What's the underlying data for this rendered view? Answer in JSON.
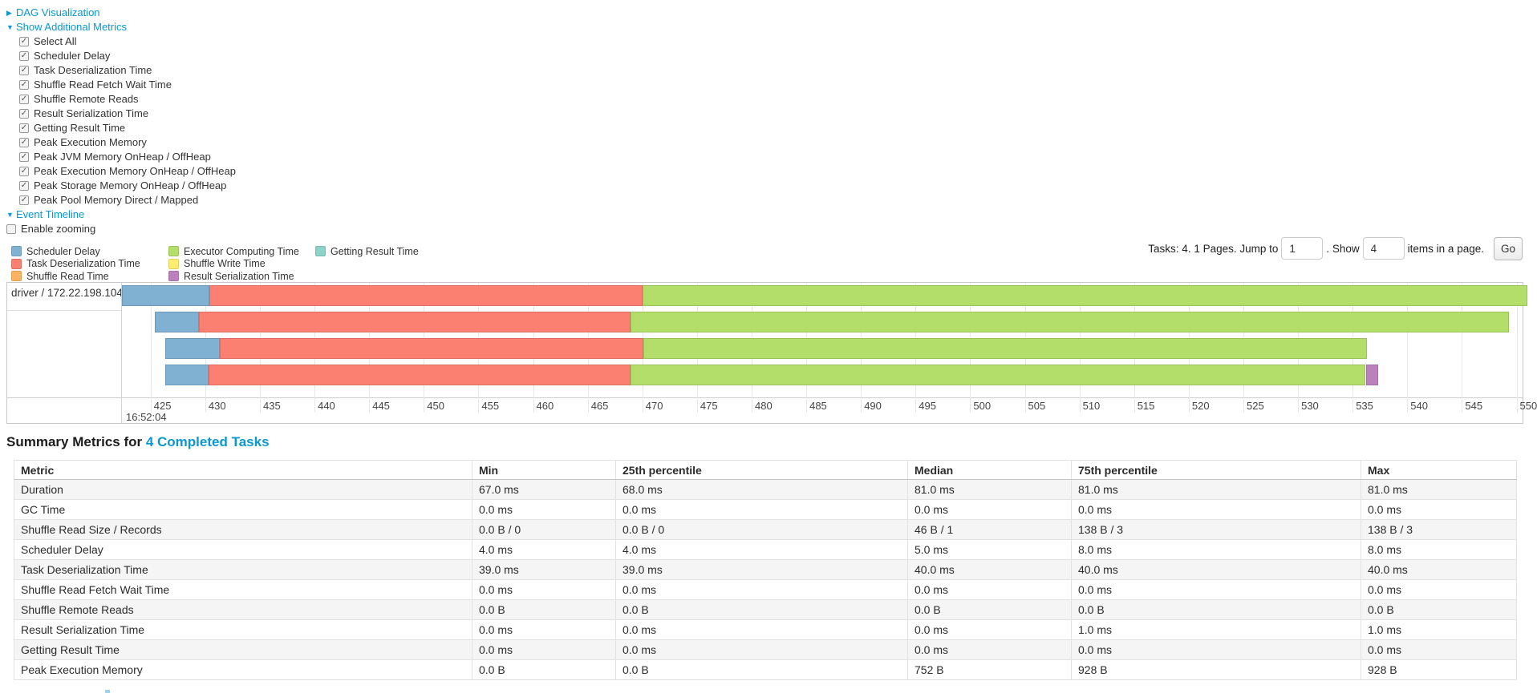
{
  "colors": {
    "link": "#0a98d0"
  },
  "controls": {
    "dag_link": "DAG Visualization",
    "metrics_link": "Show Additional Metrics",
    "timeline_link": "Event Timeline",
    "enable_zooming": {
      "label": "Enable zooming",
      "checked": false
    },
    "checkboxes": [
      {
        "label": "Select All",
        "checked": true
      },
      {
        "label": "Scheduler Delay",
        "checked": true
      },
      {
        "label": "Task Deserialization Time",
        "checked": true
      },
      {
        "label": "Shuffle Read Fetch Wait Time",
        "checked": true
      },
      {
        "label": "Shuffle Remote Reads",
        "checked": true
      },
      {
        "label": "Result Serialization Time",
        "checked": true
      },
      {
        "label": "Getting Result Time",
        "checked": true
      },
      {
        "label": "Peak Execution Memory",
        "checked": true
      },
      {
        "label": "Peak JVM Memory OnHeap / OffHeap",
        "checked": true
      },
      {
        "label": "Peak Execution Memory OnHeap / OffHeap",
        "checked": true
      },
      {
        "label": "Peak Storage Memory OnHeap / OffHeap",
        "checked": true
      },
      {
        "label": "Peak Pool Memory Direct / Mapped",
        "checked": true
      }
    ]
  },
  "legend": {
    "items": [
      {
        "label": "Scheduler Delay",
        "color": "#80B1D3"
      },
      {
        "label": "Task Deserialization Time",
        "color": "#FB8072"
      },
      {
        "label": "Shuffle Read Time",
        "color": "#FDB462"
      },
      {
        "label": "Executor Computing Time",
        "color": "#B3DE69"
      },
      {
        "label": "Shuffle Write Time",
        "color": "#FFED6F"
      },
      {
        "label": "Result Serialization Time",
        "color": "#BC80BD"
      },
      {
        "label": "Getting Result Time",
        "color": "#8DD3C7"
      }
    ]
  },
  "pagination": {
    "info": "Tasks: 4. 1 Pages. Jump to",
    "jump_value": "1",
    "show_label": ". Show",
    "show_value": "4",
    "suffix": "items in a page.",
    "go": "Go"
  },
  "chart_data": {
    "type": "timeline",
    "group_label": "driver / 172.22.198.104",
    "axis": {
      "t_min": 422.3,
      "t_max": 550.55,
      "unit": "ms within second 16:52:04",
      "major_label": "16:52:04",
      "ticks": [
        425,
        430,
        435,
        440,
        445,
        450,
        455,
        460,
        465,
        470,
        475,
        480,
        485,
        490,
        495,
        500,
        505,
        510,
        515,
        520,
        525,
        530,
        535,
        540,
        545,
        550
      ]
    },
    "colors": {
      "scheduler_delay": "#80B1D3",
      "task_deserialization_time": "#FB8072",
      "shuffle_read_time": "#FDB462",
      "executor_computing_time": "#B3DE69",
      "shuffle_write_time": "#FFED6F",
      "result_serialization_time": "#BC80BD",
      "getting_result_time": "#8DD3C7"
    },
    "tasks": [
      {
        "start": 422.4,
        "segments": [
          {
            "metric": "Scheduler Delay",
            "key": "scheduler_delay",
            "ms": 8.0
          },
          {
            "metric": "Task Deserialization Time",
            "key": "task_deserialization_time",
            "ms": 39.6
          },
          {
            "metric": "Executor Computing Time",
            "key": "executor_computing_time",
            "ms": 81.0
          }
        ]
      },
      {
        "start": 425.4,
        "segments": [
          {
            "metric": "Scheduler Delay",
            "key": "scheduler_delay",
            "ms": 4.0
          },
          {
            "metric": "Task Deserialization Time",
            "key": "task_deserialization_time",
            "ms": 39.5
          },
          {
            "metric": "Executor Computing Time",
            "key": "executor_computing_time",
            "ms": 80.4
          }
        ]
      },
      {
        "start": 426.3,
        "segments": [
          {
            "metric": "Scheduler Delay",
            "key": "scheduler_delay",
            "ms": 5.0
          },
          {
            "metric": "Task Deserialization Time",
            "key": "task_deserialization_time",
            "ms": 38.8
          },
          {
            "metric": "Executor Computing Time",
            "key": "executor_computing_time",
            "ms": 66.2
          }
        ]
      },
      {
        "start": 426.3,
        "segments": [
          {
            "metric": "Scheduler Delay",
            "key": "scheduler_delay",
            "ms": 4.0
          },
          {
            "metric": "Task Deserialization Time",
            "key": "task_deserialization_time",
            "ms": 38.6
          },
          {
            "metric": "Executor Computing Time",
            "key": "executor_computing_time",
            "ms": 67.3
          },
          {
            "metric": "Result Serialization Time",
            "key": "result_serialization_time",
            "ms": 1.1
          }
        ]
      }
    ]
  },
  "summary": {
    "heading_prefix": "Summary Metrics for ",
    "heading_link": "4 Completed Tasks",
    "columns": [
      "Metric",
      "Min",
      "25th percentile",
      "Median",
      "75th percentile",
      "Max"
    ],
    "rows": [
      {
        "metric": "Duration",
        "values": [
          "67.0 ms",
          "68.0 ms",
          "81.0 ms",
          "81.0 ms",
          "81.0 ms"
        ]
      },
      {
        "metric": "GC Time",
        "values": [
          "0.0 ms",
          "0.0 ms",
          "0.0 ms",
          "0.0 ms",
          "0.0 ms"
        ]
      },
      {
        "metric": "Shuffle Read Size / Records",
        "values": [
          "0.0 B / 0",
          "0.0 B / 0",
          "46 B / 1",
          "138 B / 3",
          "138 B / 3"
        ]
      },
      {
        "metric": "Scheduler Delay",
        "values": [
          "4.0 ms",
          "4.0 ms",
          "5.0 ms",
          "8.0 ms",
          "8.0 ms"
        ]
      },
      {
        "metric": "Task Deserialization Time",
        "values": [
          "39.0 ms",
          "39.0 ms",
          "40.0 ms",
          "40.0 ms",
          "40.0 ms"
        ]
      },
      {
        "metric": "Shuffle Read Fetch Wait Time",
        "values": [
          "0.0 ms",
          "0.0 ms",
          "0.0 ms",
          "0.0 ms",
          "0.0 ms"
        ]
      },
      {
        "metric": "Shuffle Remote Reads",
        "values": [
          "0.0 B",
          "0.0 B",
          "0.0 B",
          "0.0 B",
          "0.0 B"
        ]
      },
      {
        "metric": "Result Serialization Time",
        "values": [
          "0.0 ms",
          "0.0 ms",
          "0.0 ms",
          "1.0 ms",
          "1.0 ms"
        ]
      },
      {
        "metric": "Getting Result Time",
        "values": [
          "0.0 ms",
          "0.0 ms",
          "0.0 ms",
          "0.0 ms",
          "0.0 ms"
        ]
      },
      {
        "metric": "Peak Execution Memory",
        "values": [
          "0.0 B",
          "0.0 B",
          "752 B",
          "928 B",
          "928 B"
        ]
      }
    ]
  }
}
